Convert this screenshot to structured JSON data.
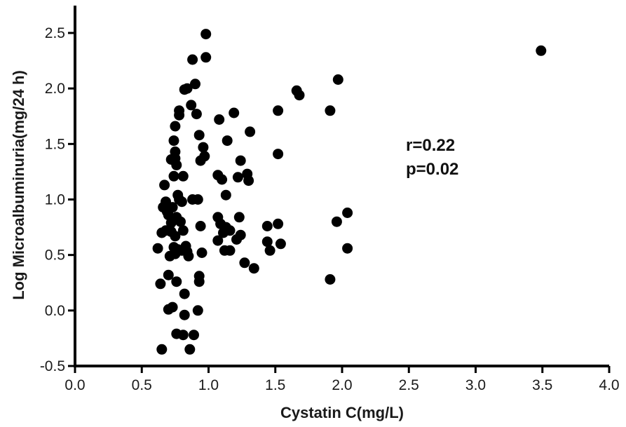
{
  "chart_data": {
    "type": "scatter",
    "xlabel": "Cystatin C(mg/L)",
    "ylabel": "Log Microalbuminuria(mg/24 h)",
    "xlim": [
      0.0,
      4.0
    ],
    "ylim": [
      -0.5,
      2.75
    ],
    "xticks": [
      "0.0",
      "0.5",
      "1.0",
      "1.5",
      "2.0",
      "2.5",
      "3.0",
      "3.5",
      "4.0"
    ],
    "yticks": [
      "-0.5",
      "0.0",
      "0.5",
      "1.0",
      "1.5",
      "2.0",
      "2.5"
    ],
    "annotations": [
      "r=0.22",
      "p=0.02"
    ],
    "marker_color": "#000000",
    "grid": false,
    "points": [
      [
        0.62,
        0.56
      ],
      [
        0.64,
        0.24
      ],
      [
        0.65,
        -0.35
      ],
      [
        0.65,
        0.7
      ],
      [
        0.66,
        0.93
      ],
      [
        0.67,
        1.13
      ],
      [
        0.68,
        0.98
      ],
      [
        0.68,
        0.72
      ],
      [
        0.69,
        0.89
      ],
      [
        0.7,
        0.01
      ],
      [
        0.7,
        0.32
      ],
      [
        0.7,
        0.86
      ],
      [
        0.71,
        0.49
      ],
      [
        0.72,
        1.36
      ],
      [
        0.72,
        0.71
      ],
      [
        0.72,
        0.79
      ],
      [
        0.73,
        0.03
      ],
      [
        0.73,
        0.93
      ],
      [
        0.74,
        1.53
      ],
      [
        0.74,
        1.21
      ],
      [
        0.74,
        0.57
      ],
      [
        0.75,
        1.66
      ],
      [
        0.75,
        1.43
      ],
      [
        0.75,
        1.37
      ],
      [
        0.75,
        0.51
      ],
      [
        0.75,
        0.67
      ],
      [
        0.76,
        1.31
      ],
      [
        0.76,
        0.26
      ],
      [
        0.76,
        -0.21
      ],
      [
        0.76,
        0.84
      ],
      [
        0.77,
        1.04
      ],
      [
        0.77,
        0.55
      ],
      [
        0.78,
        1.8
      ],
      [
        0.78,
        1.76
      ],
      [
        0.78,
        1.0
      ],
      [
        0.79,
        0.8
      ],
      [
        0.8,
        0.98
      ],
      [
        0.8,
        0.54
      ],
      [
        0.81,
        -0.22
      ],
      [
        0.81,
        1.21
      ],
      [
        0.81,
        0.72
      ],
      [
        0.82,
        1.99
      ],
      [
        0.82,
        0.15
      ],
      [
        0.82,
        -0.04
      ],
      [
        0.83,
        0.58
      ],
      [
        0.84,
        0.53
      ],
      [
        0.84,
        2.0
      ],
      [
        0.85,
        0.49
      ],
      [
        0.86,
        -0.35
      ],
      [
        0.87,
        1.85
      ],
      [
        0.88,
        2.26
      ],
      [
        0.88,
        1.0
      ],
      [
        0.89,
        -0.22
      ],
      [
        0.9,
        2.04
      ],
      [
        0.91,
        1.77
      ],
      [
        0.92,
        1.0
      ],
      [
        0.92,
        0.0
      ],
      [
        0.93,
        0.26
      ],
      [
        0.93,
        0.31
      ],
      [
        0.93,
        1.58
      ],
      [
        0.94,
        0.76
      ],
      [
        0.94,
        1.35
      ],
      [
        0.95,
        0.52
      ],
      [
        0.96,
        1.47
      ],
      [
        0.97,
        1.39
      ],
      [
        0.98,
        2.28
      ],
      [
        0.98,
        2.49
      ],
      [
        1.07,
        1.22
      ],
      [
        1.07,
        0.84
      ],
      [
        1.07,
        0.63
      ],
      [
        1.08,
        1.72
      ],
      [
        1.09,
        0.78
      ],
      [
        1.1,
        1.18
      ],
      [
        1.11,
        0.7
      ],
      [
        1.12,
        0.54
      ],
      [
        1.13,
        1.04
      ],
      [
        1.13,
        0.75
      ],
      [
        1.14,
        1.53
      ],
      [
        1.16,
        0.54
      ],
      [
        1.16,
        0.72
      ],
      [
        1.19,
        1.78
      ],
      [
        1.21,
        0.64
      ],
      [
        1.22,
        1.2
      ],
      [
        1.23,
        0.84
      ],
      [
        1.24,
        1.35
      ],
      [
        1.24,
        0.68
      ],
      [
        1.27,
        0.43
      ],
      [
        1.29,
        1.23
      ],
      [
        1.3,
        1.17
      ],
      [
        1.31,
        1.61
      ],
      [
        1.34,
        0.38
      ],
      [
        1.44,
        0.76
      ],
      [
        1.44,
        0.62
      ],
      [
        1.46,
        0.54
      ],
      [
        1.52,
        1.8
      ],
      [
        1.52,
        1.41
      ],
      [
        1.52,
        0.78
      ],
      [
        1.54,
        0.6
      ],
      [
        1.66,
        1.98
      ],
      [
        1.68,
        1.94
      ],
      [
        1.91,
        0.28
      ],
      [
        1.91,
        1.8
      ],
      [
        1.96,
        0.8
      ],
      [
        1.97,
        2.08
      ],
      [
        2.04,
        0.88
      ],
      [
        2.04,
        0.56
      ],
      [
        3.49,
        2.34
      ]
    ]
  }
}
